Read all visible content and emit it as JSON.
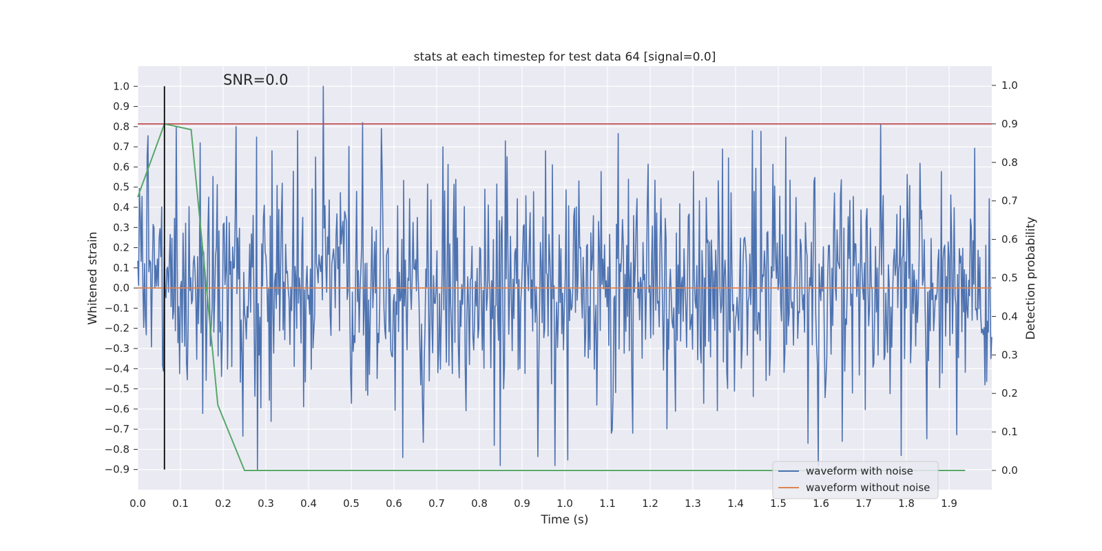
{
  "chart_data": {
    "type": "line",
    "title": "stats at each timestep for test data 64 [signal=0.0]",
    "xlabel": "Time (s)",
    "ylabel": "Whitened strain",
    "y2label": "Detection probability",
    "annotation": "SNR=0.0",
    "xlim": [
      0.0,
      2.0
    ],
    "ylim": [
      -1.0,
      1.1
    ],
    "y2lim": [
      -0.05,
      1.05
    ],
    "x_ticks": [
      "0.0",
      "0.1",
      "0.2",
      "0.3",
      "0.4",
      "0.5",
      "0.6",
      "0.7",
      "0.8",
      "0.9",
      "1.0",
      "1.1",
      "1.2",
      "1.3",
      "1.4",
      "1.5",
      "1.6",
      "1.7",
      "1.8",
      "1.9"
    ],
    "y_ticks": [
      "1.0",
      "0.9",
      "0.8",
      "0.7",
      "0.6",
      "0.5",
      "0.4",
      "0.3",
      "0.2",
      "0.1",
      "0.0",
      "−0.1",
      "−0.2",
      "−0.3",
      "−0.4",
      "−0.5",
      "−0.6",
      "−0.7",
      "−0.8",
      "−0.9"
    ],
    "y2_ticks": [
      "1.0",
      "0.9",
      "0.8",
      "0.7",
      "0.6",
      "0.5",
      "0.4",
      "0.3",
      "0.2",
      "0.1",
      "0.0"
    ],
    "grid": true,
    "legend_position": "lower-right",
    "series": [
      {
        "name": "waveform with noise",
        "axis": "left",
        "color": "#4c72b0",
        "x_start": 0.0,
        "x_end": 2.0,
        "num_samples": 1000,
        "noise_std": 0.28,
        "peaks": [
          {
            "x": 0.435,
            "y": 1.0
          },
          {
            "x": 0.28,
            "y": -0.9
          },
          {
            "x": 0.62,
            "y": -0.84
          },
          {
            "x": 0.09,
            "y": 0.8
          },
          {
            "x": 0.23,
            "y": 0.8
          },
          {
            "x": 0.315,
            "y": 0.68
          },
          {
            "x": 0.375,
            "y": 0.78
          },
          {
            "x": 0.57,
            "y": 0.79
          },
          {
            "x": 0.715,
            "y": 0.7
          },
          {
            "x": 0.835,
            "y": -0.78
          },
          {
            "x": 0.955,
            "y": 0.68
          },
          {
            "x": 1.44,
            "y": 0.78
          },
          {
            "x": 1.74,
            "y": 0.81
          },
          {
            "x": 1.57,
            "y": -0.77
          },
          {
            "x": 1.65,
            "y": -0.76
          },
          {
            "x": 1.11,
            "y": -0.72
          },
          {
            "x": 1.16,
            "y": -0.72
          }
        ]
      },
      {
        "name": "waveform without noise",
        "axis": "left",
        "color": "#dd8452",
        "x": [
          0.0,
          2.0
        ],
        "y": [
          0.0,
          0.0
        ]
      },
      {
        "name": "",
        "axis": "right",
        "color": "#55a868",
        "x": [
          0.0,
          0.0625,
          0.125,
          0.1875,
          0.25,
          0.3125,
          0.5,
          1.0,
          1.5,
          1.9375
        ],
        "y": [
          0.71,
          0.9,
          0.885,
          0.17,
          0.0,
          0.0,
          0.0,
          0.0,
          0.0,
          0.0
        ]
      }
    ],
    "threshold": {
      "axis": "right",
      "value": 0.9,
      "color": "#c44e52"
    },
    "marker_vline": {
      "x": 0.0625,
      "y_from": -0.9,
      "y_to": 1.0,
      "color": "#000000"
    }
  }
}
